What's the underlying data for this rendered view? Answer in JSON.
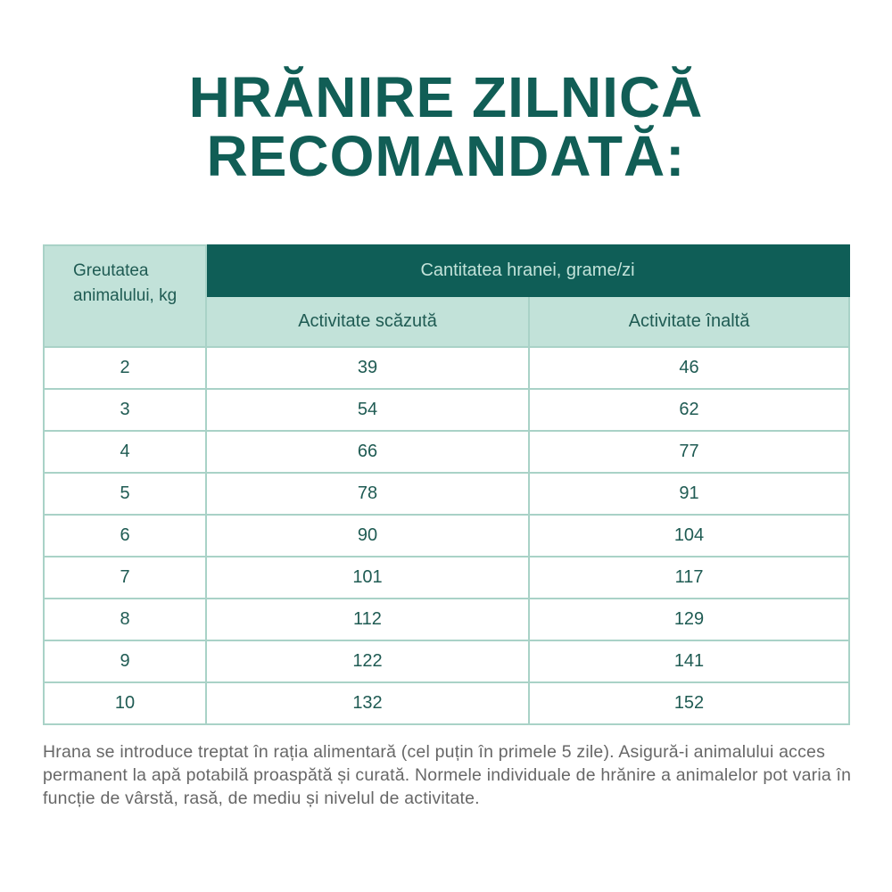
{
  "title": {
    "line1": "HRĂNIRE ZILNICĂ",
    "line2": "RECOMANDATĂ:"
  },
  "table": {
    "weight_header": "Greutatea animalului, kg",
    "quantity_header": "Cantitatea hranei, grame/zi",
    "low_header": "Activitate scăzută",
    "high_header": "Activitate înaltă",
    "rows": [
      {
        "weight": "2",
        "low": "39",
        "high": "46"
      },
      {
        "weight": "3",
        "low": "54",
        "high": "62"
      },
      {
        "weight": "4",
        "low": "66",
        "high": "77"
      },
      {
        "weight": "5",
        "low": "78",
        "high": "91"
      },
      {
        "weight": "6",
        "low": "90",
        "high": "104"
      },
      {
        "weight": "7",
        "low": "101",
        "high": "117"
      },
      {
        "weight": "8",
        "low": "112",
        "high": "129"
      },
      {
        "weight": "9",
        "low": "122",
        "high": "141"
      },
      {
        "weight": "10",
        "low": "132",
        "high": "152"
      }
    ]
  },
  "note": "Hrana se introduce treptat în rația alimentară (cel puțin în primele 5 zile). Asigură-i animalului acces permanent la apă potabilă proaspătă și curată. Normele individuale de hrănire a animalelor pot varia în funcție de vârstă, rasă, de mediu și nivelul de activitate.",
  "colors": {
    "primary": "#0f5e57",
    "light": "#c2e2d9",
    "text": "#1f5b53",
    "note": "#676767"
  }
}
